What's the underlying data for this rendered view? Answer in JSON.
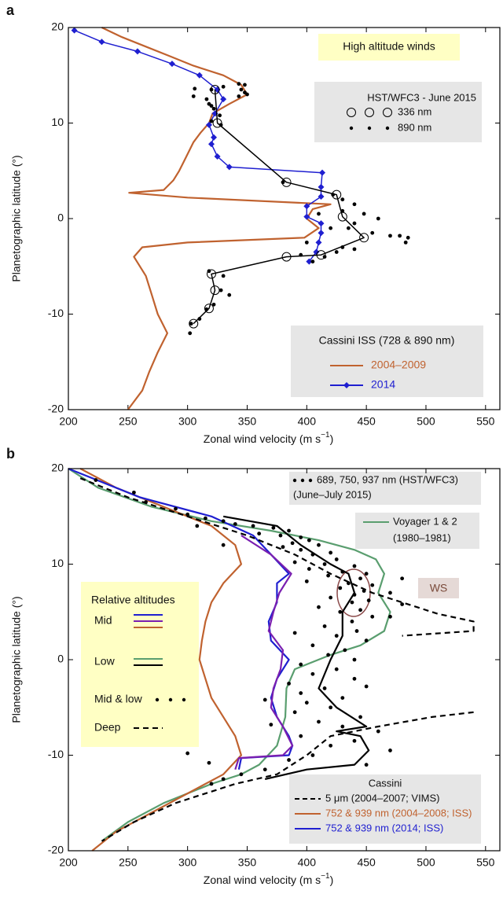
{
  "chart_data": [
    {
      "type": "line",
      "panel_label": "a",
      "xlabel": [
        "Zonal wind velocity (m s",
        "−1",
        ")"
      ],
      "ylabel": "Planetographic latitude (°)",
      "xlim": [
        200,
        562
      ],
      "ylim": [
        -20,
        20
      ],
      "xticks": [
        200,
        250,
        300,
        350,
        400,
        450,
        500,
        550
      ],
      "yticks": [
        -20,
        -10,
        0,
        10,
        20
      ],
      "annotation": "High altitude winds",
      "legend_titles": [
        "HST/WFC3 - June 2015",
        "Cassini ISS (728 & 890 nm)"
      ],
      "series": [
        {
          "name": "2004–2009",
          "color": "#c0622f",
          "values": [
            20,
            19,
            18,
            17,
            16,
            15,
            14,
            13,
            12,
            11,
            10,
            9,
            8,
            7,
            6,
            5,
            4,
            3,
            2.7,
            2.2,
            1.5,
            1,
            0,
            -1,
            -2,
            -2.5,
            -3,
            -4,
            -6,
            -8,
            -10,
            -12,
            -14,
            -16,
            -18,
            -20
          ],
          "x": [
            228,
            245,
            265,
            285,
            305,
            330,
            345,
            350,
            335,
            321,
            318,
            311,
            305,
            301,
            297,
            293,
            288,
            280,
            251,
            300,
            420,
            405,
            400,
            410,
            398,
            300,
            262,
            255,
            265,
            270,
            275,
            283,
            275,
            268,
            262,
            250
          ]
        },
        {
          "name": "2014",
          "color": "#1f1fd0",
          "marker": "diamond",
          "values": [
            19.7,
            18.5,
            17.5,
            16.2,
            15,
            13.5,
            12.5,
            11,
            9.8,
            8.5,
            7.8,
            6.5,
            5.4,
            4.8,
            3.3,
            2.3,
            1.3,
            0.2,
            -0.5,
            -1.5,
            -2.5,
            -3.5,
            -4.5
          ],
          "x": [
            205,
            228,
            258,
            287,
            310,
            325,
            330,
            323,
            318,
            322,
            320,
            325,
            335,
            413,
            412,
            412,
            400,
            400,
            412,
            412,
            410,
            408,
            402
          ]
        },
        {
          "name": "336 nm",
          "color": "#000000",
          "marker": "circle-open",
          "values": [
            13.5,
            10,
            3.8,
            2.5,
            0.2,
            -2,
            -3.8,
            -4,
            -5.8,
            -7.5,
            -9.4,
            -11
          ],
          "x": [
            323,
            325,
            383,
            425,
            430,
            448,
            412,
            383,
            320,
            323,
            318,
            305
          ]
        },
        {
          "name": "890 nm",
          "color": "#000000",
          "marker": "dot",
          "values": [
            14.1,
            14.0,
            13.5,
            13.2,
            13.0,
            12.8,
            13.8,
            13.5,
            12.5,
            12.0,
            11.8,
            11.5,
            10.8,
            10.2,
            9.8,
            13.6,
            12.8,
            3.8,
            2.5,
            2.0,
            1.5,
            0.8,
            0.5,
            0.0,
            -0.5,
            -1.0,
            -1.5,
            -1.8,
            -2.0,
            -2.5,
            -1.8,
            -3.0,
            -3.5,
            -4.0,
            -4.5,
            -3.8,
            -5.5,
            -6.0,
            -7.5,
            -8.0,
            -9.0,
            -9.5,
            -11.0,
            -12.0,
            -10.5,
            0.5,
            -1.0,
            -2.5,
            -3.2
          ],
          "x": [
            343,
            348,
            345,
            348,
            350,
            343,
            330,
            320,
            316,
            318,
            320,
            322,
            327,
            320,
            328,
            306,
            305,
            380,
            422,
            430,
            440,
            430,
            448,
            460,
            440,
            435,
            455,
            478,
            485,
            483,
            470,
            430,
            425,
            415,
            405,
            395,
            318,
            330,
            328,
            335,
            322,
            316,
            303,
            302,
            310,
            410,
            420,
            400,
            440
          ]
        }
      ]
    },
    {
      "type": "line",
      "panel_label": "b",
      "xlabel": [
        "Zonal wind velocity (m s",
        "−1",
        ")"
      ],
      "ylabel": "Planetographic latitude (°)",
      "xlim": [
        200,
        562
      ],
      "ylim": [
        -20,
        20
      ],
      "xticks": [
        200,
        250,
        300,
        350,
        400,
        450,
        500,
        550
      ],
      "yticks": [
        -20,
        -10,
        0,
        10,
        20
      ],
      "annotation": "WS",
      "legend_titles": [
        "Cassini"
      ],
      "relative_altitudes": {
        "title": "Relative altitudes",
        "items": [
          {
            "label": "Mid",
            "style": "line",
            "colors": [
              "#1f1fd0",
              "#7a1fb0",
              "#c0622f"
            ]
          },
          {
            "label": "Low",
            "style": "line",
            "colors": [
              "#5a9e6f",
              "#000000"
            ]
          },
          {
            "label": "Mid & low",
            "style": "dots",
            "colors": [
              "#000000"
            ]
          },
          {
            "label": "Deep",
            "style": "dash",
            "colors": [
              "#000000"
            ]
          }
        ]
      },
      "series": [
        {
          "name": "Voyager 1 & 2",
          "name_line2": "(1980–1981)",
          "color": "#5a9e6f",
          "values": [
            20,
            18,
            16,
            14.5,
            13.5,
            12.5,
            11.5,
            10.5,
            9,
            7,
            5,
            3,
            1.5,
            0.5,
            -1,
            -3,
            -6,
            -9,
            -11,
            -12,
            -13,
            -15,
            -17,
            -19
          ],
          "x": [
            200,
            225,
            270,
            320,
            370,
            410,
            440,
            458,
            465,
            460,
            470,
            465,
            445,
            420,
            390,
            383,
            382,
            375,
            360,
            345,
            320,
            280,
            250,
            228
          ]
        },
        {
          "name": "752 & 939 nm (2004–2008; ISS)",
          "color": "#c0622f",
          "values": [
            20,
            18,
            16,
            14,
            12,
            10,
            8,
            6,
            4,
            2,
            0,
            -2,
            -4,
            -6,
            -8,
            -10,
            -12,
            -14,
            -16,
            -18,
            -20
          ],
          "x": [
            210,
            240,
            280,
            320,
            340,
            345,
            330,
            320,
            315,
            312,
            310,
            315,
            320,
            330,
            340,
            345,
            330,
            300,
            270,
            240,
            220
          ]
        },
        {
          "name": "752 & 939 nm (2014; ISS)",
          "color": "#1f1fd0",
          "values": [
            20,
            17,
            15,
            13,
            11,
            9,
            8,
            6,
            4,
            2,
            0,
            -2,
            -4,
            -6,
            -8,
            -9,
            -10,
            -10.3,
            -11.5
          ],
          "x": [
            200,
            260,
            320,
            355,
            370,
            385,
            375,
            375,
            368,
            370,
            385,
            375,
            370,
            375,
            385,
            388,
            385,
            345,
            343
          ]
        },
        {
          "name": "5 μm (2004–2007; VIMS)",
          "color": "#000000",
          "dash": true,
          "values": [
            19,
            17,
            15,
            13,
            11,
            9,
            7,
            6,
            4.8,
            4,
            3,
            2.5,
            null,
            -5.5,
            -6,
            -7,
            -8,
            -10,
            -12,
            -13,
            -15,
            -17,
            -19
          ],
          "x": [
            210,
            250,
            300,
            350,
            390,
            420,
            455,
            480,
            510,
            540,
            540,
            480,
            null,
            540,
            505,
            460,
            420,
            400,
            375,
            340,
            290,
            255,
            228
          ]
        },
        {
          "color": "#7a1fb0",
          "values": [
            13,
            11,
            9,
            7,
            5,
            3,
            1,
            -1,
            -3,
            -5,
            -7,
            -9,
            -10,
            -10.3,
            -11.5
          ],
          "x": [
            345,
            370,
            387,
            377,
            372,
            368,
            380,
            378,
            372,
            370,
            380,
            388,
            380,
            343,
            340
          ]
        },
        {
          "color": "#000000",
          "values": [
            15,
            14,
            12,
            10,
            9,
            7,
            5,
            2.5,
            0,
            -3,
            -5,
            -7,
            -7.5,
            -8,
            -9.5,
            -11,
            -11.5,
            -12.5
          ],
          "x": [
            330,
            375,
            395,
            420,
            435,
            440,
            430,
            430,
            420,
            410,
            425,
            450,
            425,
            445,
            452,
            440,
            400,
            365
          ]
        },
        {
          "name": "689, 750, 937 nm (HST/WFC3)",
          "name_line2": "(June–July 2015)",
          "color": "#000000",
          "marker": "dot",
          "values": [
            18.8,
            17.5,
            16.5,
            15.8,
            15.2,
            14.8,
            14.5,
            14.2,
            14.0,
            13.8,
            13.5,
            13.2,
            13.0,
            12.8,
            12.5,
            12.2,
            12.0,
            11.8,
            11.5,
            11.2,
            11.0,
            10.5,
            10.2,
            10.0,
            9.8,
            9.5,
            9.2,
            9.0,
            8.8,
            8.5,
            8.2,
            8.0,
            7.8,
            7.5,
            7.2,
            7.0,
            6.8,
            6.5,
            6.2,
            6.0,
            5.8,
            5.5,
            5.2,
            5.0,
            4.5,
            4.0,
            3.5,
            3.0,
            2.5,
            2.0,
            1.5,
            1.0,
            0.5,
            0.0,
            -0.5,
            -1.0,
            -1.5,
            -2.0,
            -2.5,
            -3.0,
            -3.5,
            -4.0,
            -4.5,
            -5.0,
            -5.5,
            -6.0,
            -6.5,
            -7.0,
            -7.5,
            -8.0,
            -8.5,
            -9.0,
            -9.5,
            -10.0,
            -10.5,
            -11.0,
            -11.5,
            -12.0,
            -12.5,
            -13.0,
            -9.8,
            -10.8,
            14.0,
            12.0,
            8.5,
            4.5,
            2.8,
            -2.8,
            -6.8,
            -4.2
          ],
          "x": [
            223,
            255,
            265,
            290,
            300,
            315,
            330,
            340,
            355,
            372,
            385,
            360,
            378,
            395,
            402,
            388,
            410,
            380,
            395,
            420,
            405,
            425,
            390,
            415,
            440,
            402,
            430,
            450,
            418,
            445,
            400,
            435,
            455,
            428,
            448,
            470,
            440,
            420,
            452,
            438,
            480,
            410,
            445,
            428,
            455,
            438,
            415,
            442,
            425,
            450,
            405,
            432,
            418,
            440,
            395,
            425,
            405,
            440,
            385,
            415,
            395,
            430,
            400,
            420,
            390,
            445,
            410,
            430,
            460,
            395,
            440,
            420,
            470,
            405,
            385,
            450,
            365,
            345,
            330,
            320,
            300,
            318,
            308,
            330,
            480,
            470,
            390,
            450,
            370,
            365
          ]
        }
      ]
    }
  ]
}
